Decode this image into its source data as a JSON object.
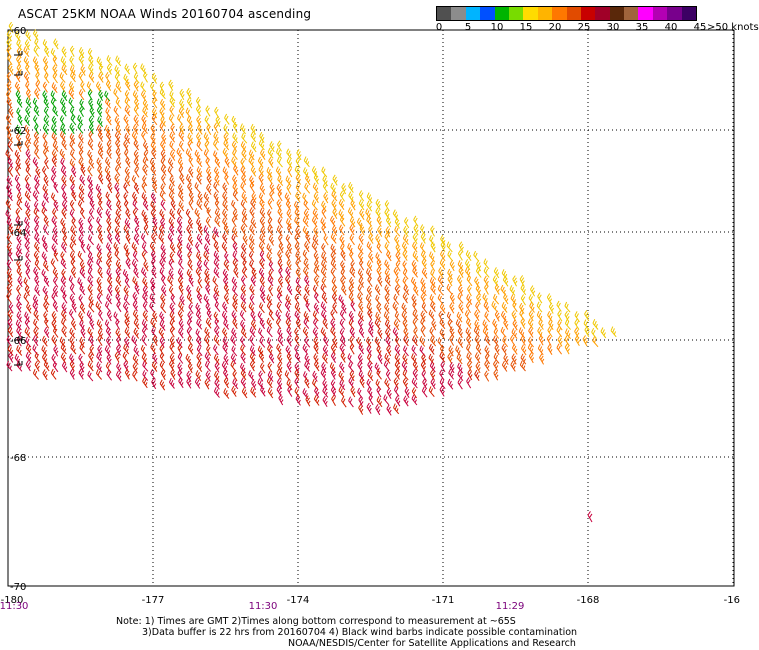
{
  "title": "ASCAT 25KM NOAA Winds 20160704 ascending",
  "scale": {
    "colors": [
      "#505050",
      "#8c8c8c",
      "#00b4ff",
      "#0050ff",
      "#00b400",
      "#78dc00",
      "#ffdc00",
      "#ffb400",
      "#ff7800",
      "#e14b00",
      "#c80000",
      "#a00028",
      "#5a280a",
      "#a0643c",
      "#ff00ff",
      "#b400b4",
      "#78008c",
      "#3c0064"
    ],
    "tick_labels": [
      "0",
      "5",
      "10",
      "15",
      "20",
      "25",
      "30",
      "35",
      "40",
      "45",
      ">50 knots"
    ]
  },
  "axes": {
    "lat_labels": [
      "-60",
      "-62",
      "-64",
      "-66",
      "-68",
      "-70"
    ],
    "lon_labels": [
      "-180",
      "-177",
      "-174",
      "-171",
      "-168",
      "-16"
    ],
    "time_labels": [
      "11:30",
      "11:30",
      "11:29"
    ]
  },
  "notes": {
    "line1": "Note: 1) Times are GMT 2)Times along bottom correspond to measurement at ~65S",
    "line2": "3)Data buffer is 22 hrs from 20160704 4) Black wind barbs indicate possible contamination",
    "line3": "NOAA/NESDIS/Center for Satellite Applications and Research"
  }
}
